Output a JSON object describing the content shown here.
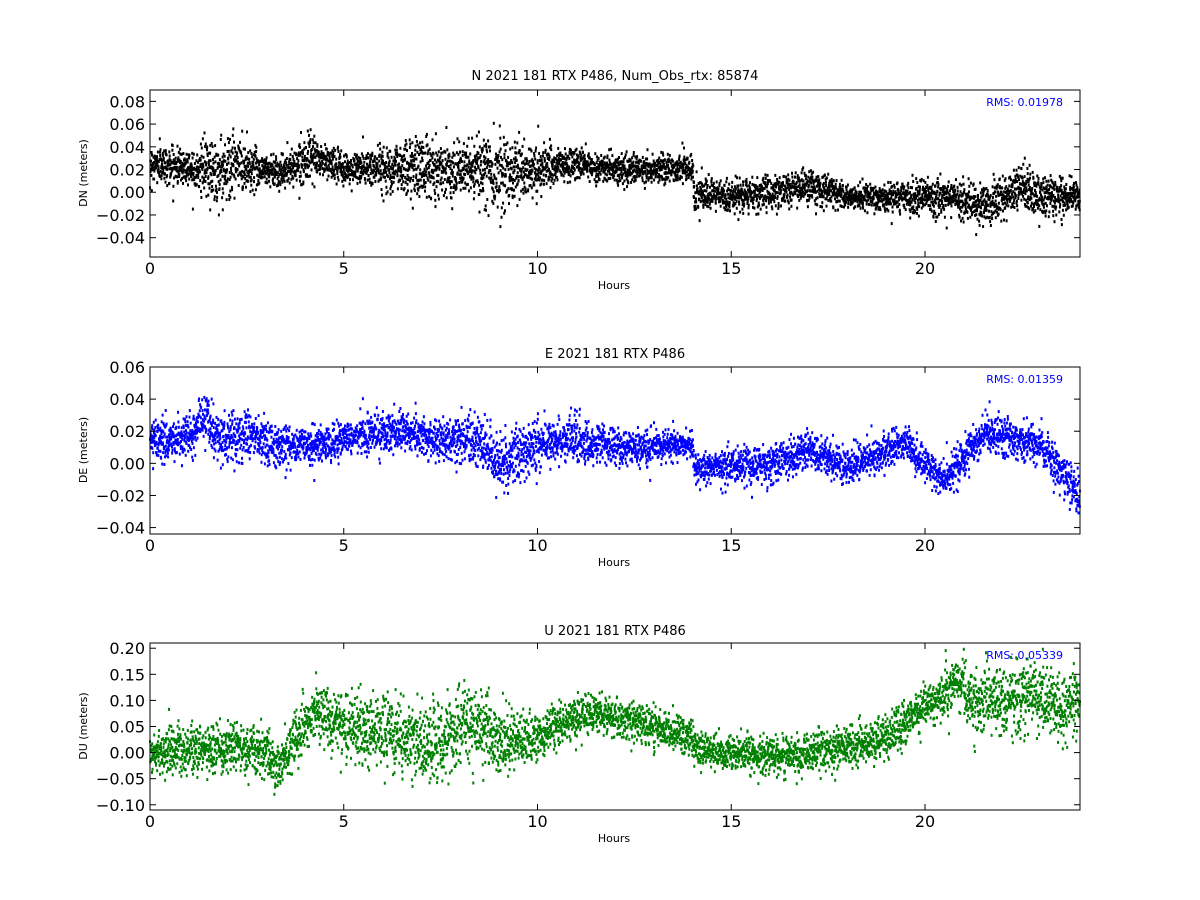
{
  "chart_data": [
    {
      "type": "scatter",
      "title": "N 2021 181 RTX  P486, Num_Obs_rtx: 85874",
      "xlabel": "Hours",
      "ylabel": "DN (meters)",
      "xlim": [
        0,
        24
      ],
      "ylim": [
        -0.057,
        0.09
      ],
      "xticks": [
        0,
        5,
        10,
        15,
        20
      ],
      "yticks": [
        -0.04,
        -0.02,
        0.0,
        0.02,
        0.04,
        0.06,
        0.08
      ],
      "ytick_labels": [
        "−0.04",
        "−0.02",
        "0.00",
        "0.02",
        "0.04",
        "0.06",
        "0.08"
      ],
      "color": "#000000",
      "grid": false,
      "annotation": "RMS:  0.01978",
      "trend": {
        "x": [
          0,
          1,
          1.8,
          2.2,
          3,
          3.5,
          4,
          4.5,
          5,
          6,
          7,
          8,
          9,
          10,
          11,
          12,
          13,
          14,
          14.05,
          15,
          16,
          17,
          18,
          19,
          20,
          21,
          21.5,
          22,
          22.5,
          23,
          24
        ],
        "y": [
          0.025,
          0.022,
          0.018,
          0.024,
          0.02,
          0.018,
          0.03,
          0.028,
          0.02,
          0.022,
          0.022,
          0.02,
          0.018,
          0.02,
          0.025,
          0.02,
          0.02,
          0.022,
          -0.003,
          -0.004,
          0.0,
          0.005,
          -0.004,
          -0.006,
          -0.004,
          -0.006,
          -0.01,
          -0.008,
          0.004,
          -0.004,
          -0.004
        ]
      },
      "spread": {
        "x": [
          0,
          1,
          1.8,
          2.2,
          3,
          4,
          5,
          6,
          6.8,
          7.2,
          8,
          9,
          9.6,
          10,
          11,
          12,
          14,
          15,
          17,
          18,
          22.5,
          24
        ],
        "y": [
          0.009,
          0.009,
          0.018,
          0.016,
          0.008,
          0.01,
          0.008,
          0.011,
          0.016,
          0.015,
          0.012,
          0.02,
          0.016,
          0.012,
          0.008,
          0.007,
          0.008,
          0.008,
          0.009,
          0.006,
          0.012,
          0.008
        ]
      }
    },
    {
      "type": "scatter",
      "title": "E 2021 181 RTX  P486",
      "xlabel": "Hours",
      "ylabel": "DE (meters)",
      "xlim": [
        0,
        24
      ],
      "ylim": [
        -0.044,
        0.06
      ],
      "xticks": [
        0,
        5,
        10,
        15,
        20
      ],
      "yticks": [
        -0.04,
        -0.02,
        0.0,
        0.02,
        0.04,
        0.06
      ],
      "ytick_labels": [
        "−0.04",
        "−0.02",
        "0.00",
        "0.02",
        "0.04",
        "0.06"
      ],
      "color": "#0000ff",
      "grid": false,
      "annotation": "RMS:  0.01359",
      "trend": {
        "x": [
          0,
          1,
          1.4,
          1.8,
          2.5,
          3.5,
          4.5,
          5.5,
          6.5,
          7.5,
          8.5,
          9,
          10,
          11,
          12,
          13,
          14,
          14.05,
          15,
          16,
          17,
          18,
          19.5,
          20,
          20.5,
          21,
          21.5,
          22.5,
          23,
          24
        ],
        "y": [
          0.015,
          0.015,
          0.03,
          0.015,
          0.018,
          0.01,
          0.012,
          0.018,
          0.02,
          0.014,
          0.015,
          0.0,
          0.012,
          0.015,
          0.01,
          0.01,
          0.012,
          -0.002,
          -0.002,
          0.0,
          0.008,
          -0.002,
          0.012,
          0.0,
          -0.01,
          0.005,
          0.018,
          0.015,
          0.012,
          -0.02
        ]
      },
      "spread": {
        "x": [
          0,
          2,
          5,
          8,
          9,
          14,
          15,
          17,
          20,
          24
        ],
        "y": [
          0.007,
          0.009,
          0.006,
          0.009,
          0.01,
          0.005,
          0.007,
          0.007,
          0.006,
          0.008
        ]
      }
    },
    {
      "type": "scatter",
      "title": "U 2021 181 RTX  P486",
      "xlabel": "Hours",
      "ylabel": "DU (meters)",
      "xlim": [
        0,
        24
      ],
      "ylim": [
        -0.11,
        0.21
      ],
      "xticks": [
        0,
        5,
        10,
        15,
        20
      ],
      "yticks": [
        -0.1,
        -0.05,
        0.0,
        0.05,
        0.1,
        0.15,
        0.2
      ],
      "ytick_labels": [
        "−0.10",
        "−0.05",
        "0.00",
        "0.05",
        "0.10",
        "0.15",
        "0.20"
      ],
      "color": "#008000",
      "grid": false,
      "annotation": "RMS:  0.05339",
      "trend": {
        "x": [
          0,
          1,
          2,
          3,
          3.3,
          4,
          4.3,
          5,
          6,
          7,
          7.5,
          8,
          8.5,
          9,
          10,
          11,
          12,
          13,
          14,
          14.05,
          15,
          16,
          17,
          18,
          19,
          19.5,
          20,
          20.5,
          21,
          21.1,
          22,
          23,
          23.5,
          24
        ],
        "y": [
          0.0,
          0.005,
          0.01,
          0.0,
          -0.03,
          0.05,
          0.08,
          0.05,
          0.04,
          0.02,
          0.02,
          0.05,
          0.06,
          0.02,
          0.03,
          0.07,
          0.07,
          0.05,
          0.03,
          0.01,
          0.0,
          -0.01,
          0.0,
          0.01,
          0.03,
          0.06,
          0.09,
          0.11,
          0.14,
          0.1,
          0.1,
          0.11,
          0.08,
          0.1
        ]
      },
      "spread": {
        "x": [
          0,
          4,
          8,
          8.5,
          10,
          14,
          16,
          20,
          23,
          24
        ],
        "y": [
          0.025,
          0.03,
          0.05,
          0.045,
          0.025,
          0.02,
          0.02,
          0.025,
          0.04,
          0.035
        ]
      }
    }
  ]
}
